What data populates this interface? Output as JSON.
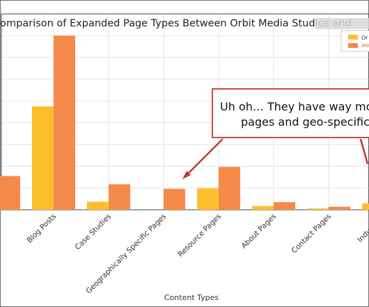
{
  "chart_data": {
    "type": "bar",
    "title": "Comparison of Expanded Page Types Between Orbit Media Studios and",
    "xlabel": "Content Types",
    "ylabel": "",
    "categories": [
      "",
      "Blog Posts",
      "Case Studies",
      "Geographically Specific Pages",
      "Resource Pages",
      "About Pages",
      "Contact Pages",
      "Industry P"
    ],
    "series": [
      {
        "name": "Or",
        "color": "#fdbf2d",
        "values": [
          0,
          475,
          37,
          0,
          98,
          17,
          6,
          29
        ]
      },
      {
        "name": "",
        "color": "#f68a4a",
        "values": [
          155,
          800,
          117,
          96,
          197,
          35,
          14,
          0
        ]
      }
    ],
    "ylim": [
      0,
      900
    ],
    "grid": true,
    "legend": "top-right",
    "annotation": {
      "lines": [
        "Uh oh… They have way mo",
        "pages and geo-specific"
      ],
      "border_color": "#c0392b",
      "arrow_color": "#c0392b"
    }
  }
}
